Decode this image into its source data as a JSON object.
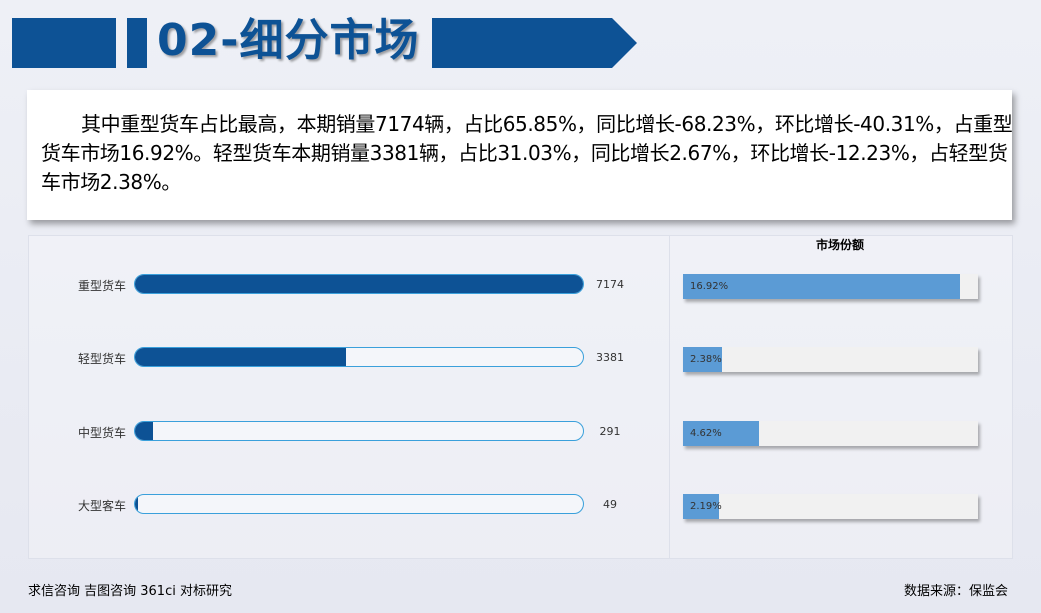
{
  "header": {
    "title": "02-细分市场"
  },
  "paragraph": "其中重型货车占比最高，本期销量7174辆，占比65.85%，同比增长-68.23%，环比增长-40.31%，占重型货车市场16.92%。轻型货车本期销量3381辆，占比31.03%，同比增长2.67%，环比增长-12.23%，占轻型货车市场2.38%。",
  "chart_data": [
    {
      "type": "bar",
      "title": "",
      "categories": [
        "重型货车",
        "轻型货车",
        "中型货车",
        "大型客车"
      ],
      "values": [
        7174,
        3381,
        291,
        49
      ],
      "xlim": [
        0,
        7174
      ]
    },
    {
      "type": "bar",
      "title": "市场份额",
      "categories": [
        "重型货车",
        "轻型货车",
        "中型货车",
        "大型客车"
      ],
      "values": [
        16.92,
        2.38,
        4.62,
        2.19
      ],
      "value_labels": [
        "16.92%",
        "2.38%",
        "4.62%",
        "2.19%"
      ]
    }
  ],
  "colors": {
    "primary": "#0d5295",
    "bar_border": "#3aa0db",
    "share_fill": "#5b9bd5"
  },
  "footer": {
    "left": "求信咨询 吉图咨询 361ci 对标研究",
    "right": "数据来源：保监会"
  }
}
